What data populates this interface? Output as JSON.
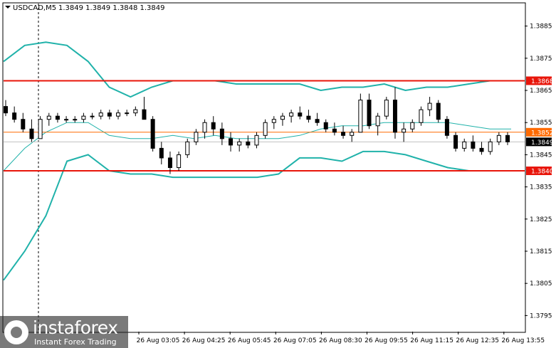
{
  "header": {
    "symbol_label": "USDCAD,M5",
    "ohlc": "1.3849 1.3849 1.3848 1.3849"
  },
  "chart_data": {
    "type": "candlestick",
    "symbol": "USDCAD",
    "timeframe": "M5",
    "ylim": [
      1.379,
      1.3892
    ],
    "y_ticks": [
      {
        "label": "1.3885",
        "value": 1.3885
      },
      {
        "label": "1.3875",
        "value": 1.3875
      },
      {
        "label": "1.3865",
        "value": 1.3865
      },
      {
        "label": "1.3855",
        "value": 1.3855
      },
      {
        "label": "1.3845",
        "value": 1.3845
      },
      {
        "label": "1.3835",
        "value": 1.3835
      },
      {
        "label": "1.3825",
        "value": 1.3825
      },
      {
        "label": "1.3815",
        "value": 1.3815
      },
      {
        "label": "1.3805",
        "value": 1.3805
      },
      {
        "label": "1.3795",
        "value": 1.3795
      }
    ],
    "x_ticks": [
      "26 Aug 03:05",
      "26 Aug 04:25",
      "26 Aug 05:45",
      "26 Aug 07:05",
      "26 Aug 08:30",
      "26 Aug 09:55",
      "26 Aug 11:15",
      "26 Aug 12:35",
      "26 Aug 13:55"
    ],
    "levels": [
      {
        "label": "1.3868",
        "value": 1.3868,
        "color": "#e8150a"
      },
      {
        "label": "1.3840",
        "value": 1.384,
        "color": "#e8150a"
      }
    ],
    "ask_line": {
      "label": "1.3852",
      "value": 1.3852,
      "color": "#ff6a00"
    },
    "current_price": {
      "label": "1.3849",
      "value": 1.3849
    },
    "bollinger_color": "#20b2aa",
    "bb_upper": [
      1.3874,
      1.3879,
      1.388,
      1.3879,
      1.3874,
      1.3866,
      1.3863,
      1.3866,
      1.3868,
      1.3868,
      1.3868,
      1.3867,
      1.3867,
      1.3867,
      1.3867,
      1.3865,
      1.3866,
      1.3866,
      1.3867,
      1.3865,
      1.3866,
      1.3866,
      1.3867,
      1.3868,
      1.3868
    ],
    "bb_middle": [
      1.384,
      1.3847,
      1.3852,
      1.3855,
      1.3855,
      1.3851,
      1.385,
      1.385,
      1.3851,
      1.385,
      1.3851,
      1.385,
      1.385,
      1.385,
      1.3851,
      1.3853,
      1.3854,
      1.3854,
      1.3855,
      1.3855,
      1.3855,
      1.3855,
      1.3854,
      1.3853,
      1.3853
    ],
    "bb_lower": [
      1.3806,
      1.3815,
      1.3826,
      1.3843,
      1.3845,
      1.384,
      1.3839,
      1.3839,
      1.3838,
      1.3838,
      1.3838,
      1.3838,
      1.3838,
      1.3839,
      1.3844,
      1.3844,
      1.3843,
      1.3846,
      1.3846,
      1.3845,
      1.3843,
      1.3841,
      1.384,
      1.384,
      1.384
    ],
    "candles": [
      [
        1.386,
        1.3862,
        1.3857,
        1.3858
      ],
      [
        1.3858,
        1.386,
        1.3855,
        1.3856
      ],
      [
        1.3856,
        1.3858,
        1.3852,
        1.3853
      ],
      [
        1.3853,
        1.3856,
        1.3849,
        1.385
      ],
      [
        1.385,
        1.3857,
        1.385,
        1.3856
      ],
      [
        1.3856,
        1.3858,
        1.3854,
        1.3857
      ],
      [
        1.3857,
        1.3858,
        1.3855,
        1.3856
      ],
      [
        1.3856,
        1.3857,
        1.3855,
        1.3856
      ],
      [
        1.3856,
        1.3857,
        1.3855,
        1.3856
      ],
      [
        1.3856,
        1.3858,
        1.3855,
        1.3857
      ],
      [
        1.3857,
        1.3858,
        1.3856,
        1.3857
      ],
      [
        1.3857,
        1.3859,
        1.3856,
        1.3858
      ],
      [
        1.3858,
        1.3859,
        1.3856,
        1.3857
      ],
      [
        1.3857,
        1.3859,
        1.3856,
        1.3858
      ],
      [
        1.3858,
        1.3859,
        1.3857,
        1.3858
      ],
      [
        1.3858,
        1.386,
        1.3857,
        1.3859
      ],
      [
        1.3859,
        1.3863,
        1.3856,
        1.3856
      ],
      [
        1.3856,
        1.3857,
        1.3846,
        1.3847
      ],
      [
        1.3847,
        1.3849,
        1.3842,
        1.3844
      ],
      [
        1.3844,
        1.3846,
        1.3839,
        1.3841
      ],
      [
        1.3841,
        1.3846,
        1.384,
        1.3845
      ],
      [
        1.3845,
        1.385,
        1.3844,
        1.3849
      ],
      [
        1.3849,
        1.3853,
        1.3848,
        1.3852
      ],
      [
        1.3852,
        1.3856,
        1.385,
        1.3855
      ],
      [
        1.3855,
        1.3857,
        1.3851,
        1.3853
      ],
      [
        1.3853,
        1.3855,
        1.3848,
        1.385
      ],
      [
        1.385,
        1.3852,
        1.3846,
        1.3848
      ],
      [
        1.3848,
        1.385,
        1.3846,
        1.3849
      ],
      [
        1.3849,
        1.3851,
        1.3847,
        1.3848
      ],
      [
        1.3848,
        1.3852,
        1.3847,
        1.3851
      ],
      [
        1.3851,
        1.3856,
        1.385,
        1.3855
      ],
      [
        1.3855,
        1.3857,
        1.3853,
        1.3856
      ],
      [
        1.3856,
        1.3858,
        1.3854,
        1.3857
      ],
      [
        1.3857,
        1.3859,
        1.3855,
        1.3858
      ],
      [
        1.3858,
        1.386,
        1.3856,
        1.3857
      ],
      [
        1.3857,
        1.3859,
        1.3855,
        1.3856
      ],
      [
        1.3856,
        1.3858,
        1.3854,
        1.3855
      ],
      [
        1.3855,
        1.3856,
        1.3852,
        1.3853
      ],
      [
        1.3853,
        1.3855,
        1.3851,
        1.3852
      ],
      [
        1.3852,
        1.3854,
        1.385,
        1.3851
      ],
      [
        1.3851,
        1.3853,
        1.3849,
        1.3852
      ],
      [
        1.3852,
        1.3864,
        1.3852,
        1.3862
      ],
      [
        1.3862,
        1.3864,
        1.3853,
        1.3854
      ],
      [
        1.3854,
        1.3858,
        1.3851,
        1.3857
      ],
      [
        1.3857,
        1.3863,
        1.3856,
        1.3862
      ],
      [
        1.3862,
        1.3866,
        1.385,
        1.3852
      ],
      [
        1.3852,
        1.3855,
        1.3849,
        1.3853
      ],
      [
        1.3853,
        1.3856,
        1.3852,
        1.3855
      ],
      [
        1.3855,
        1.386,
        1.3854,
        1.3859
      ],
      [
        1.3859,
        1.3863,
        1.3857,
        1.3861
      ],
      [
        1.3861,
        1.3862,
        1.3855,
        1.3856
      ],
      [
        1.3856,
        1.3857,
        1.385,
        1.3851
      ],
      [
        1.3851,
        1.3852,
        1.3846,
        1.3847
      ],
      [
        1.3847,
        1.385,
        1.3846,
        1.3849
      ],
      [
        1.3849,
        1.3851,
        1.3846,
        1.3847
      ],
      [
        1.3847,
        1.3849,
        1.3845,
        1.3846
      ],
      [
        1.3846,
        1.385,
        1.3845,
        1.3849
      ],
      [
        1.3849,
        1.3852,
        1.3848,
        1.3851
      ],
      [
        1.3851,
        1.3852,
        1.3848,
        1.3849
      ]
    ]
  },
  "branding": {
    "logo_name": "instaforex",
    "logo_tagline": "Instant Forex Trading"
  }
}
